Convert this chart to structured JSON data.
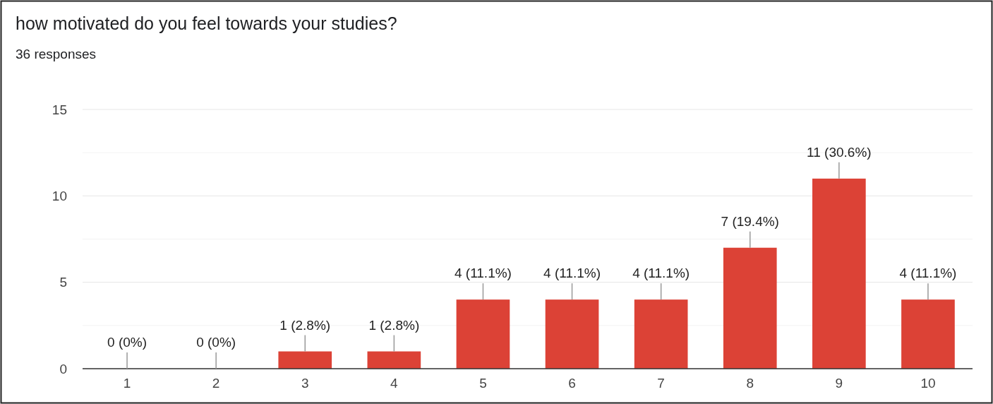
{
  "chart_data": {
    "type": "bar",
    "title": "how motivated do you feel towards your studies?",
    "subtitle": "36 responses",
    "categories": [
      "1",
      "2",
      "3",
      "4",
      "5",
      "6",
      "7",
      "8",
      "9",
      "10"
    ],
    "values": [
      0,
      0,
      1,
      1,
      4,
      4,
      4,
      7,
      11,
      4
    ],
    "color": "#dc4236",
    "value_labels": [
      "0 (0%)",
      "0 (0%)",
      "1 (2.8%)",
      "1 (2.8%)",
      "4 (11.1%)",
      "4 (11.1%)",
      "4 (11.1%)",
      "7 (19.4%)",
      "11 (30.6%)",
      "4 (11.1%)"
    ],
    "ylim": [
      0,
      15
    ],
    "yticks": [
      0,
      {
        "value": 2.5,
        "label": null
      },
      5,
      {
        "value": 7.5,
        "label": null
      },
      10,
      {
        "value": 12.5,
        "label": null
      },
      15
    ],
    "grid": "y"
  }
}
